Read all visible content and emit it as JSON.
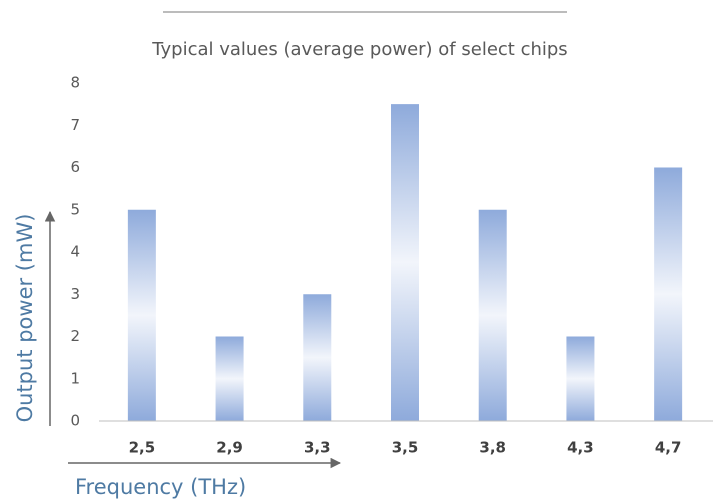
{
  "chart_data": {
    "type": "bar",
    "title": "Typical values (average power) of select chips",
    "y_axis_label": "Output power (mW)",
    "x_axis_label": "Frequency (THz)",
    "categories": [
      "2,5",
      "2,9",
      "3,3",
      "3,5",
      "3,8",
      "4,3",
      "4,7"
    ],
    "values": [
      5,
      2,
      3,
      7.5,
      5,
      2,
      6
    ],
    "color": "#8eaadb",
    "ylim": [
      0,
      8
    ],
    "yticks": [
      0,
      1,
      2,
      3,
      4,
      5,
      6,
      7,
      8
    ],
    "grid": false
  }
}
